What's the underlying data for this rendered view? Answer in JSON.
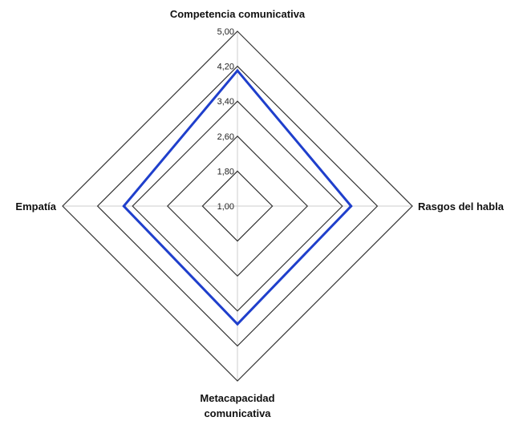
{
  "chart_data": {
    "type": "radar",
    "axes": [
      {
        "label_lines": [
          "Competencia comunicativa"
        ]
      },
      {
        "label_lines": [
          "Rasgos del habla"
        ]
      },
      {
        "label_lines": [
          "Metacapacidad",
          "comunicativa"
        ]
      },
      {
        "label_lines": [
          "Empatía"
        ]
      }
    ],
    "r_min": 1.0,
    "r_max": 5.0,
    "ticks": [
      1.0,
      1.8,
      2.6,
      3.4,
      4.2,
      5.0
    ],
    "tick_labels": [
      "1,00",
      "1,80",
      "2,60",
      "3,40",
      "4,20",
      "5,00"
    ],
    "series": [
      {
        "values": [
          4.1,
          3.6,
          3.7,
          3.6
        ],
        "color": "#1f3fcc"
      }
    ],
    "grid_color": "#333333",
    "spoke_color": "#cccccc"
  }
}
